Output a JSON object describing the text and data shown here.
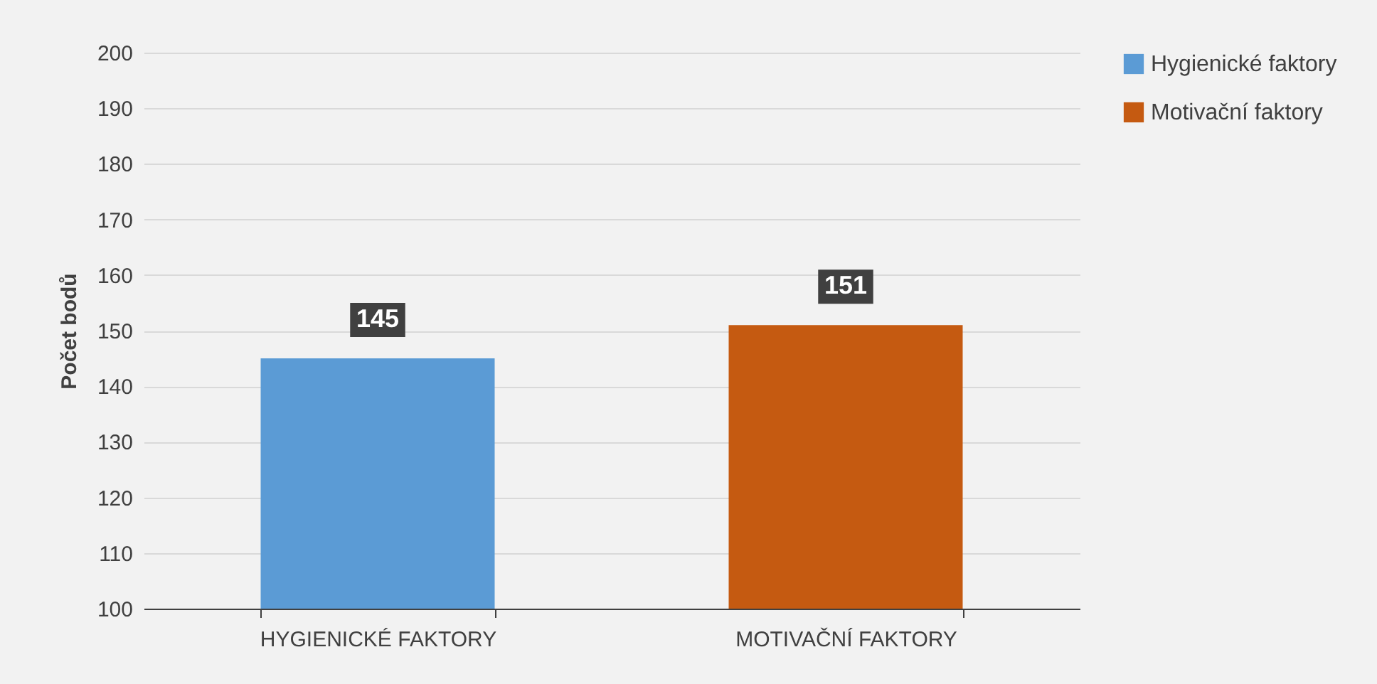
{
  "chart_data": {
    "type": "bar",
    "ylabel": "Počet bodů",
    "categories": [
      "HYGIENICKÉ FAKTORY",
      "MOTIVAČNÍ FAKTORY"
    ],
    "series": [
      {
        "name": "Hygienické faktory",
        "color": "#5b9bd5",
        "values": [
          145,
          null
        ]
      },
      {
        "name": "Motivační faktory",
        "color": "#c55a11",
        "values": [
          null,
          151
        ]
      }
    ],
    "ylim": [
      100,
      200
    ],
    "yticks": [
      100,
      110,
      120,
      130,
      140,
      150,
      160,
      170,
      180,
      190,
      200
    ],
    "grid": "y",
    "legend": "right",
    "data_labels": true
  }
}
